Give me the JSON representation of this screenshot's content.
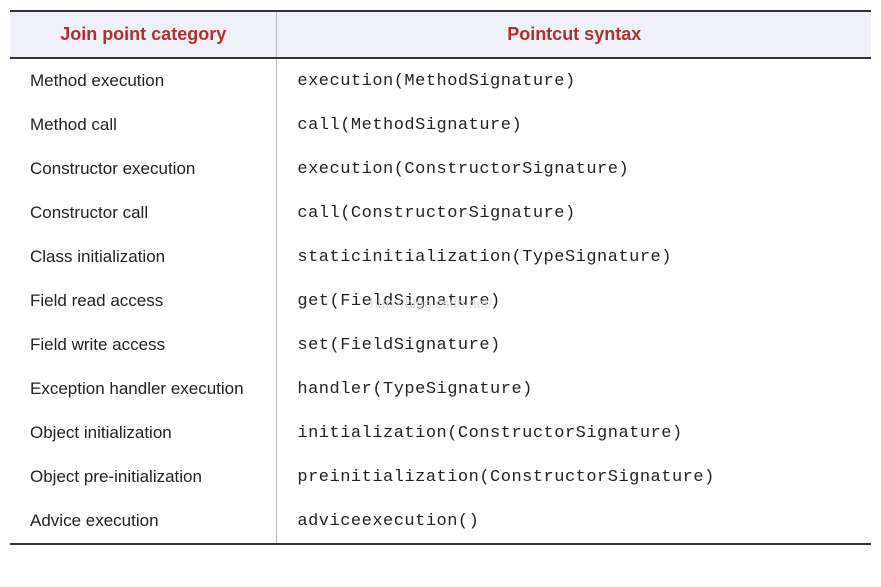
{
  "table": {
    "header_bg": "#f0f0f8",
    "header_color": "#b03030",
    "border_top_color": "#333333",
    "row_border_color": "#bbbbbb",
    "columns": [
      "Join point category",
      "Pointcut syntax"
    ],
    "rows": [
      {
        "category": "Method execution",
        "syntax": "execution(MethodSignature)"
      },
      {
        "category": "Method call",
        "syntax": "call(MethodSignature)"
      },
      {
        "category": "Constructor execution",
        "syntax": "execution(ConstructorSignature)"
      },
      {
        "category": "Constructor call",
        "syntax": "call(ConstructorSignature)"
      },
      {
        "category": "Class initialization",
        "syntax": "staticinitialization(TypeSignature)"
      },
      {
        "category": "Field read access",
        "syntax": "get(FieldSignature)"
      },
      {
        "category": "Field write access",
        "syntax": "set(FieldSignature)"
      },
      {
        "category": "Exception handler execution",
        "syntax": "handler(TypeSignature)"
      },
      {
        "category": "Object initialization",
        "syntax": "initialization(ConstructorSignature)"
      },
      {
        "category": "Object pre-initialization",
        "syntax": "preinitialization(ConstructorSignature)"
      },
      {
        "category": "Advice execution",
        "syntax": "adviceexecution()"
      }
    ]
  },
  "watermark": "http://blog.csdn.net/",
  "fonts": {
    "header_size_pt": 18,
    "body_size_pt": 17,
    "code_family": "Courier New"
  },
  "colors": {
    "header_text": "#b03030",
    "body_text": "#222222",
    "watermark": "#dddddd",
    "background": "#ffffff"
  }
}
